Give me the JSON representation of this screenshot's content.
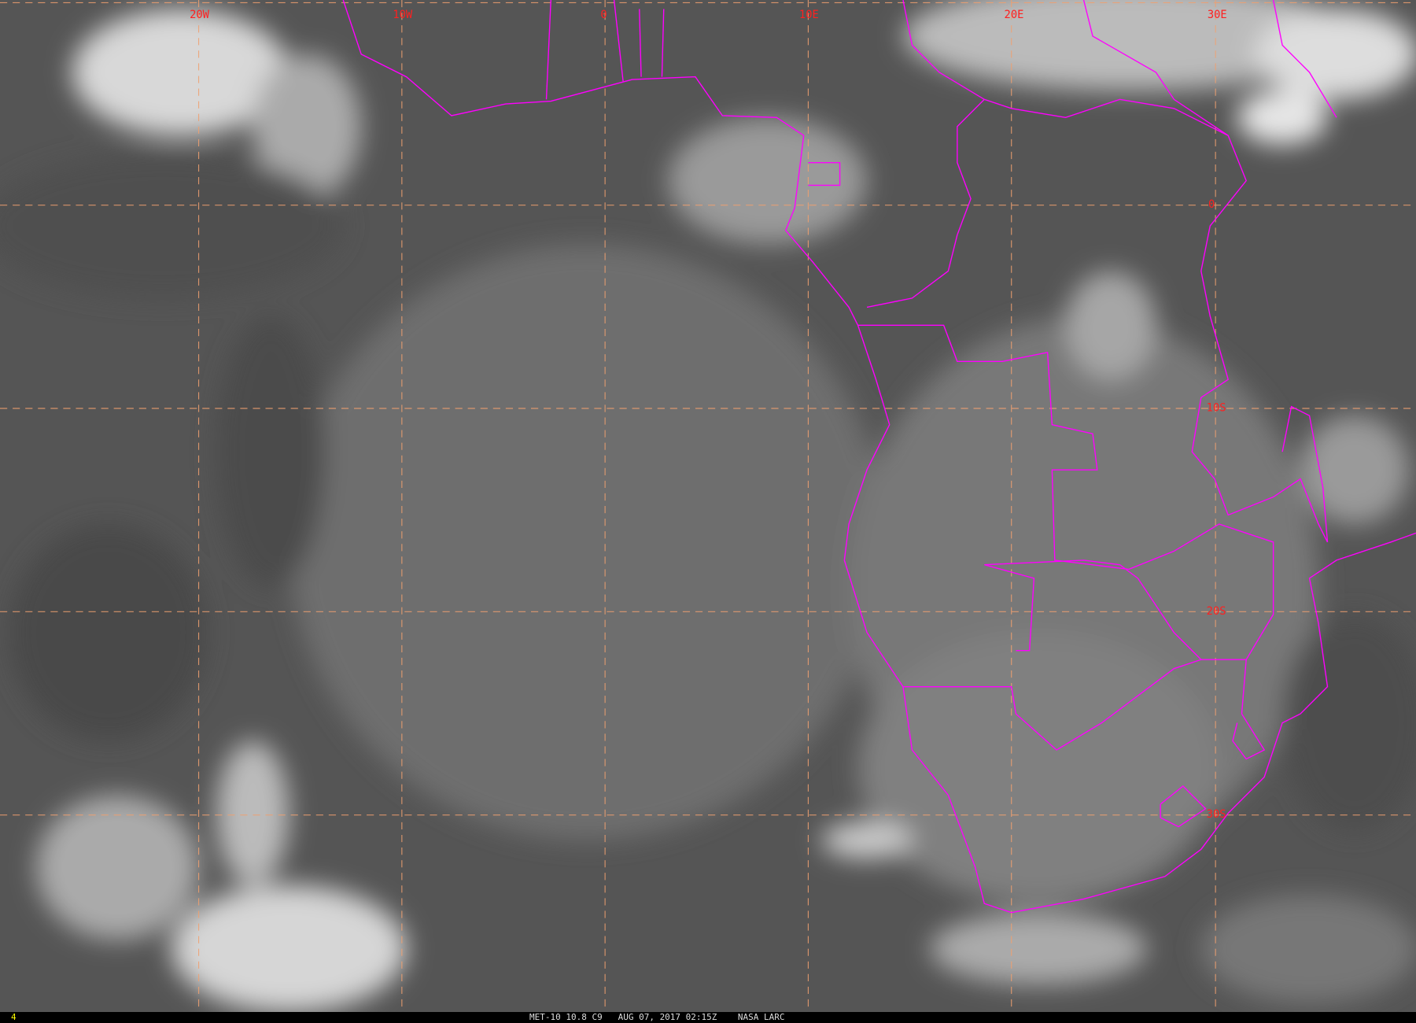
{
  "map": {
    "longitude_labels": [
      "20W",
      "10W",
      "0",
      "10E",
      "20E",
      "30E"
    ],
    "latitude_labels": [
      "0",
      "10S",
      "20S",
      "30S"
    ],
    "grid_color": "#f0a070",
    "border_color": "#ff00ff",
    "label_color": "#ff2020"
  },
  "footer": {
    "frame_number": "4",
    "caption": "MET-10 10.8 C9   AUG 07, 2017 02:15Z    NASA LARC"
  }
}
